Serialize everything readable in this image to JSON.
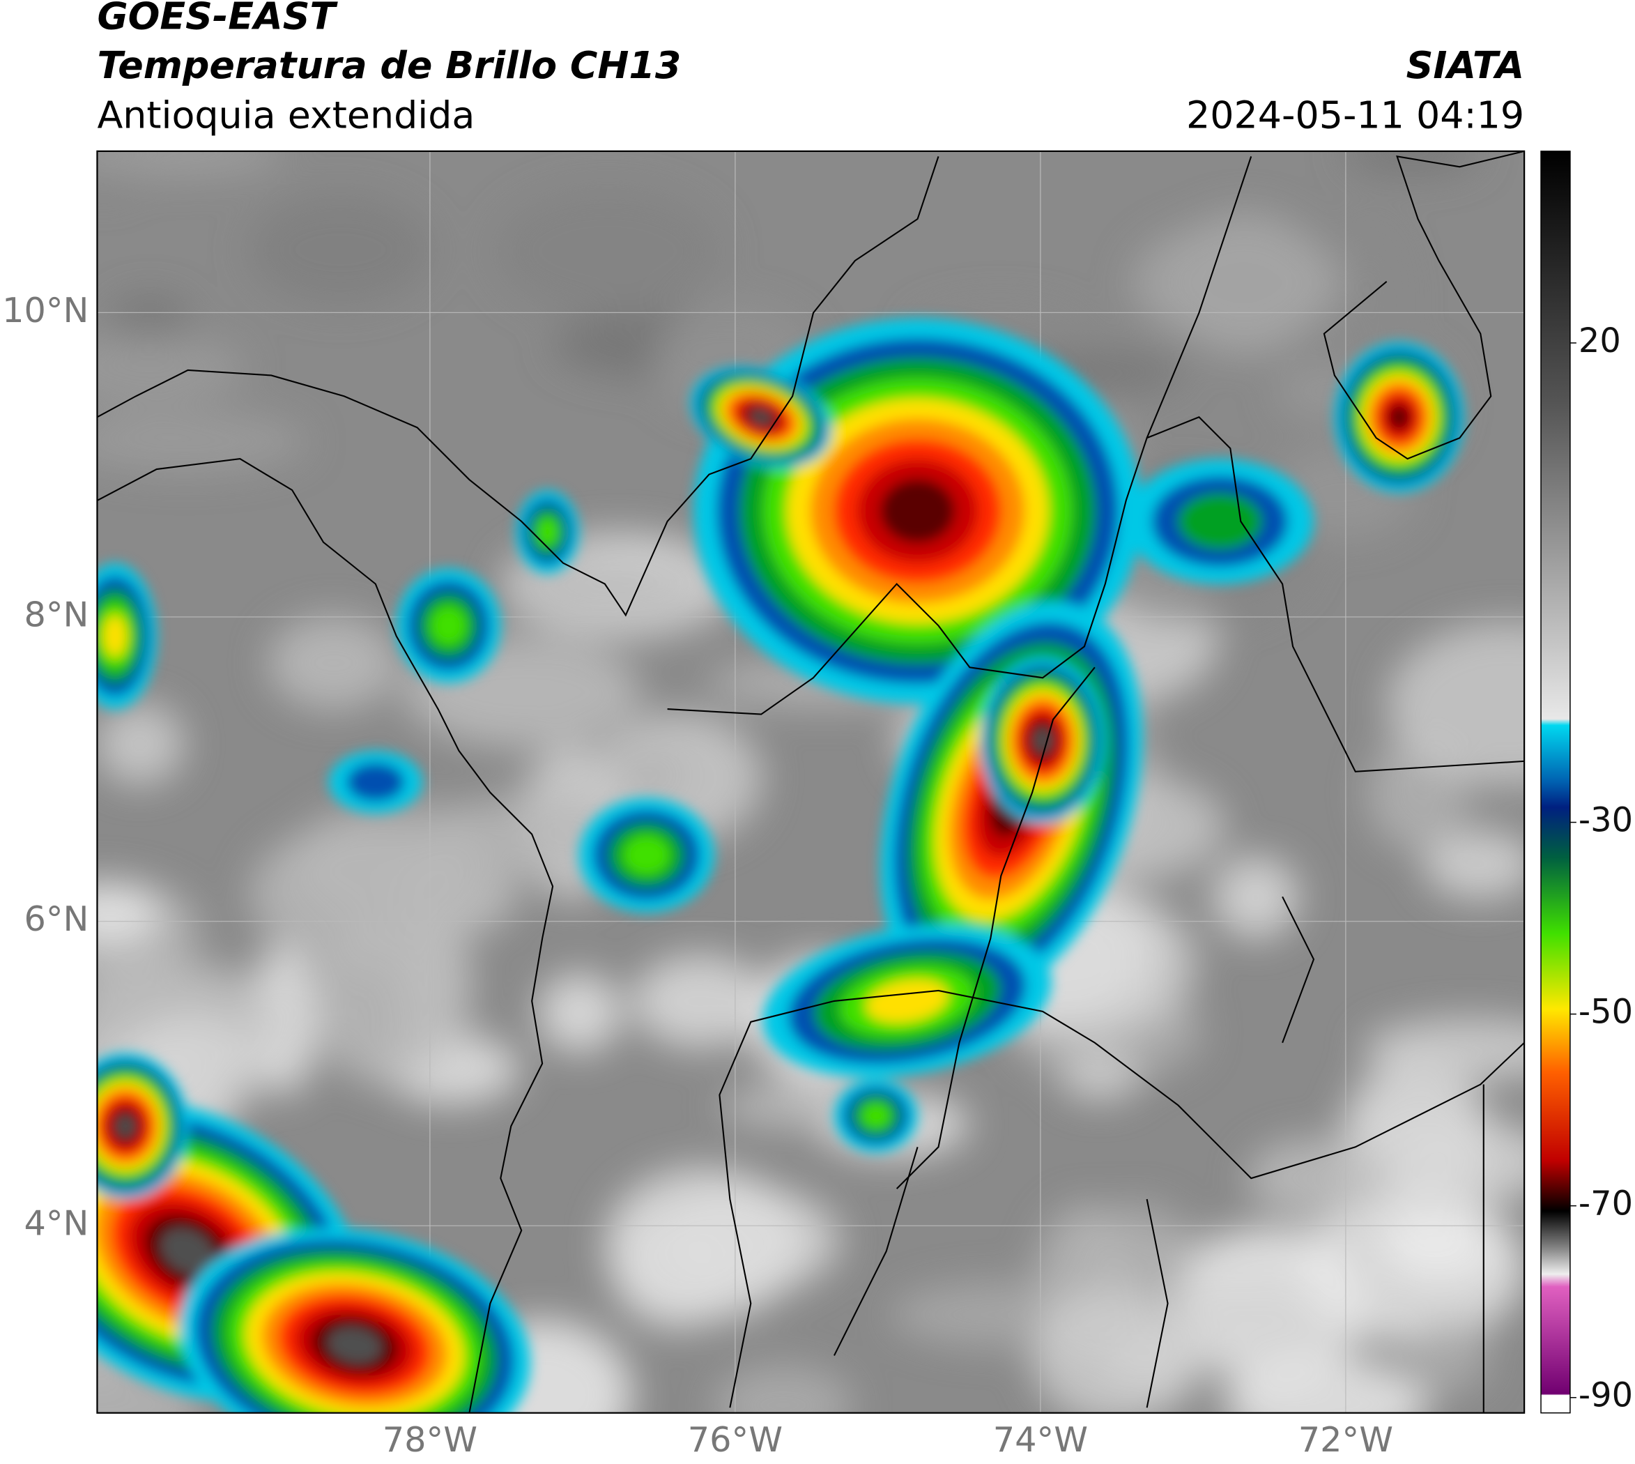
{
  "header": {
    "satellite": "GOES-EAST",
    "product": "Temperatura de Brillo CH13",
    "region": "Antioquia extendida",
    "source": "SIATA",
    "datetime": "2024-05-11 04:19"
  },
  "map": {
    "lon_lim": [
      -80.18,
      -70.83
    ],
    "lat_lim": [
      2.77,
      11.06
    ],
    "lon_ticks": [
      {
        "value": -78,
        "label": "78°W"
      },
      {
        "value": -76,
        "label": "76°W"
      },
      {
        "value": -74,
        "label": "74°W"
      },
      {
        "value": -72,
        "label": "72°W"
      }
    ],
    "lat_ticks": [
      {
        "value": 10,
        "label": "10°N"
      },
      {
        "value": 8,
        "label": "8°N"
      },
      {
        "value": 6,
        "label": "6°N"
      },
      {
        "value": 4,
        "label": "4°N"
      }
    ]
  },
  "colorbar": {
    "lim": [
      -91.6,
      40
    ],
    "ticks": [
      20,
      -30,
      -50,
      -70,
      -90
    ]
  }
}
